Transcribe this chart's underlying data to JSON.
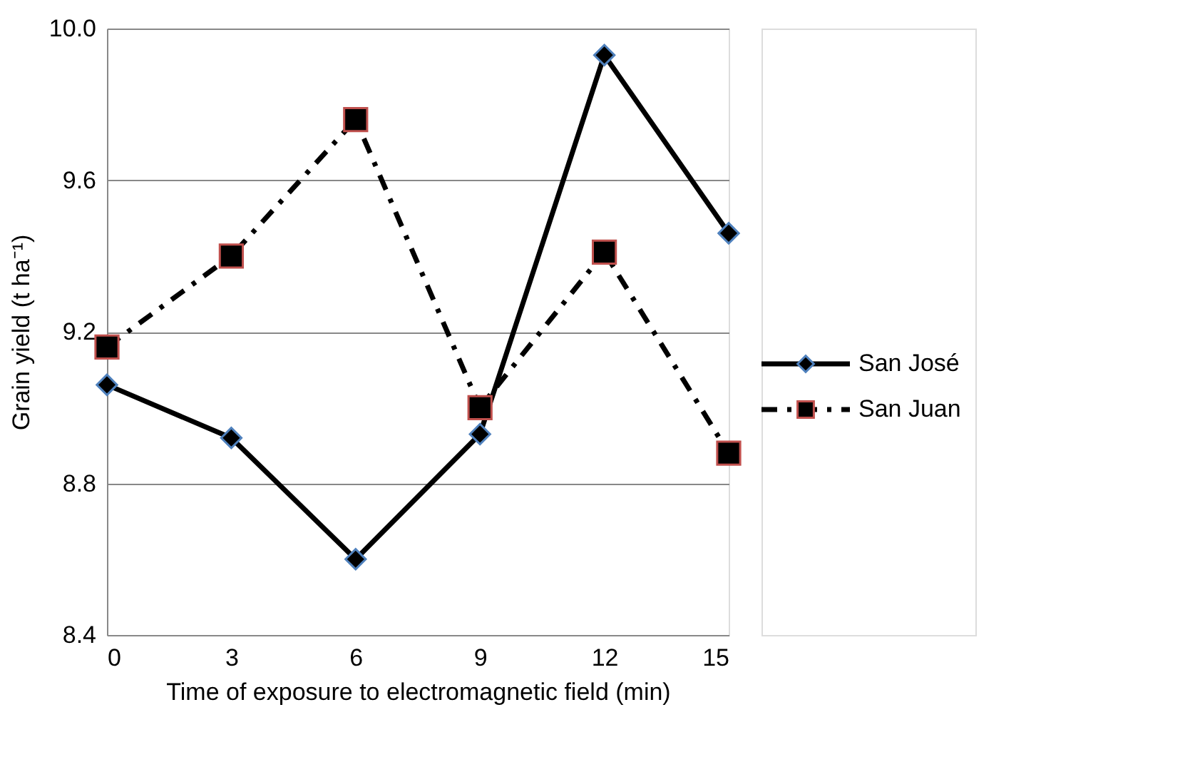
{
  "chart_data": {
    "type": "line",
    "xlabel": "Time of exposure to electromagnetic field (min)",
    "ylabel": "Grain yield (t ha⁻¹)",
    "x": [
      0,
      3,
      6,
      9,
      12,
      15
    ],
    "series": [
      {
        "name": "San José",
        "color": "#000000",
        "marker": "diamond",
        "line_style": "solid",
        "values": [
          9.06,
          8.92,
          8.6,
          8.93,
          9.93,
          9.46
        ]
      },
      {
        "name": "San Juan",
        "color": "#000000",
        "marker": "square",
        "line_style": "dashed",
        "values": [
          9.16,
          9.4,
          9.76,
          9.0,
          9.41,
          8.88
        ]
      }
    ],
    "xlim": [
      0,
      15
    ],
    "xticks": [
      0,
      3,
      6,
      9,
      12,
      15
    ],
    "ylim": [
      8.4,
      10.0
    ],
    "yticks": [
      {
        "value": 8.4,
        "label": "8.4"
      },
      {
        "value": 8.8,
        "label": "8.8"
      },
      {
        "value": 9.2,
        "label": "9.2"
      },
      {
        "value": 9.6,
        "label": "9.6"
      },
      {
        "value": 10.0,
        "label": "10.0"
      }
    ],
    "grid": "y",
    "legend": "right"
  }
}
